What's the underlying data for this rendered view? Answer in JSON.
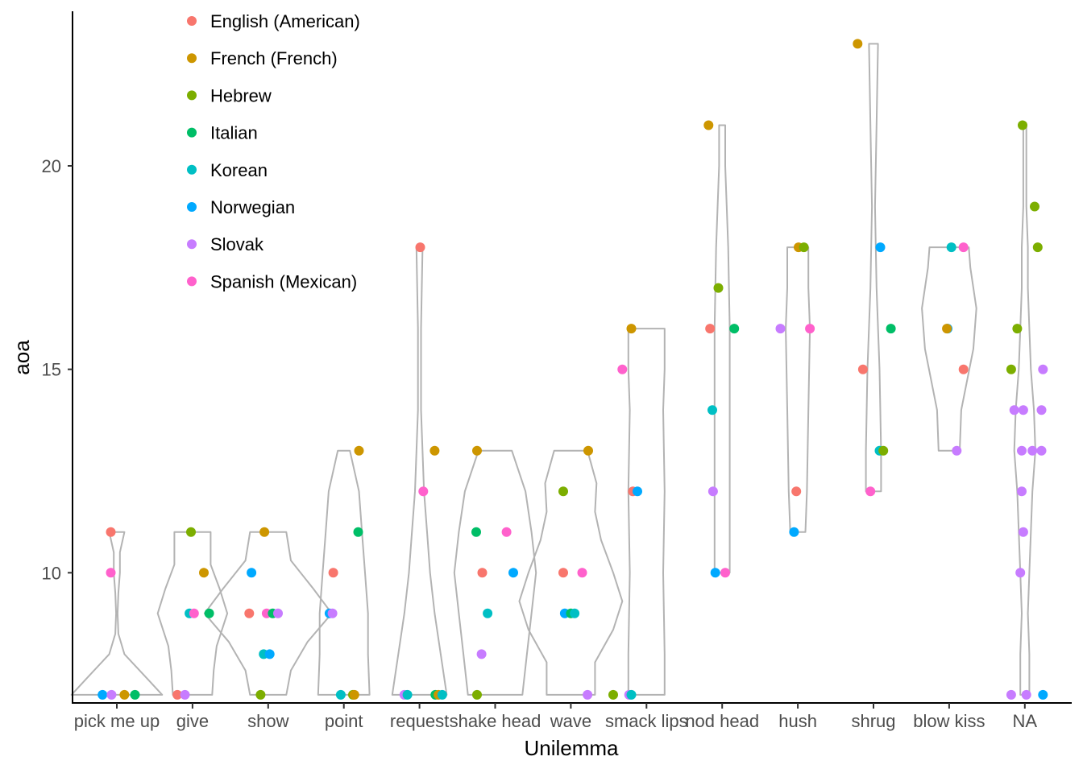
{
  "chart_data": {
    "type": "violin-jitter",
    "xlabel": "Unilemma",
    "ylabel": "aoa",
    "ylim": [
      6.8,
      23.8
    ],
    "yticks": [
      10,
      15,
      20
    ],
    "grid": false,
    "legend_position": "top-left",
    "categories": [
      "pick me up",
      "give",
      "show",
      "point",
      "request",
      "shake head",
      "wave",
      "smack lips",
      "nod head",
      "hush",
      "shrug",
      "blow kiss",
      "NA"
    ],
    "series": [
      {
        "name": "English (American)",
        "color": "#F8766D"
      },
      {
        "name": "French (French)",
        "color": "#CD9600"
      },
      {
        "name": "Hebrew",
        "color": "#7CAE00"
      },
      {
        "name": "Italian",
        "color": "#00BE67"
      },
      {
        "name": "Korean",
        "color": "#00BFC4"
      },
      {
        "name": "Norwegian",
        "color": "#00A9FF"
      },
      {
        "name": "Slovak",
        "color": "#C77CFF"
      },
      {
        "name": "Spanish (Mexican)",
        "color": "#FF61CC"
      }
    ],
    "points": [
      {
        "c": 0,
        "s": 0,
        "y": 11,
        "j": -0.08
      },
      {
        "c": 0,
        "s": 7,
        "y": 10,
        "j": -0.08
      },
      {
        "c": 0,
        "s": 5,
        "y": 7,
        "j": -0.19
      },
      {
        "c": 0,
        "s": 6,
        "y": 7,
        "j": -0.07
      },
      {
        "c": 0,
        "s": 1,
        "y": 7,
        "j": 0.1
      },
      {
        "c": 0,
        "s": 3,
        "y": 7,
        "j": 0.24
      },
      {
        "c": 1,
        "s": 2,
        "y": 11,
        "j": -0.02
      },
      {
        "c": 1,
        "s": 1,
        "y": 10,
        "j": 0.15
      },
      {
        "c": 1,
        "s": 4,
        "y": 9,
        "j": -0.04
      },
      {
        "c": 1,
        "s": 7,
        "y": 9,
        "j": 0.02
      },
      {
        "c": 1,
        "s": 3,
        "y": 9,
        "j": 0.22
      },
      {
        "c": 1,
        "s": 0,
        "y": 7,
        "j": -0.2
      },
      {
        "c": 1,
        "s": 6,
        "y": 7,
        "j": -0.1
      },
      {
        "c": 2,
        "s": 1,
        "y": 11,
        "j": -0.05
      },
      {
        "c": 2,
        "s": 5,
        "y": 10,
        "j": -0.22
      },
      {
        "c": 2,
        "s": 0,
        "y": 9,
        "j": -0.25
      },
      {
        "c": 2,
        "s": 7,
        "y": 9,
        "j": -0.02
      },
      {
        "c": 2,
        "s": 3,
        "y": 9,
        "j": 0.06
      },
      {
        "c": 2,
        "s": 6,
        "y": 9,
        "j": 0.13
      },
      {
        "c": 2,
        "s": 4,
        "y": 8,
        "j": -0.06
      },
      {
        "c": 2,
        "s": 5,
        "y": 8,
        "j": 0.02
      },
      {
        "c": 2,
        "s": 2,
        "y": 7,
        "j": -0.1
      },
      {
        "c": 3,
        "s": 1,
        "y": 13,
        "j": 0.2
      },
      {
        "c": 3,
        "s": 3,
        "y": 11,
        "j": 0.19
      },
      {
        "c": 3,
        "s": 0,
        "y": 10,
        "j": -0.14
      },
      {
        "c": 3,
        "s": 5,
        "y": 9,
        "j": -0.19
      },
      {
        "c": 3,
        "s": 6,
        "y": 9,
        "j": -0.15
      },
      {
        "c": 3,
        "s": 4,
        "y": 7,
        "j": -0.04
      },
      {
        "c": 3,
        "s": 2,
        "y": 7,
        "j": 0.12
      },
      {
        "c": 3,
        "s": 1,
        "y": 7,
        "j": 0.14
      },
      {
        "c": 4,
        "s": 0,
        "y": 18,
        "j": 0.01
      },
      {
        "c": 4,
        "s": 1,
        "y": 13,
        "j": 0.2
      },
      {
        "c": 4,
        "s": 7,
        "y": 12,
        "j": 0.05
      },
      {
        "c": 4,
        "s": 6,
        "y": 7,
        "j": -0.2
      },
      {
        "c": 4,
        "s": 4,
        "y": 7,
        "j": -0.16
      },
      {
        "c": 4,
        "s": 3,
        "y": 7,
        "j": 0.21
      },
      {
        "c": 4,
        "s": 1,
        "y": 7,
        "j": 0.25
      },
      {
        "c": 4,
        "s": 4,
        "y": 7,
        "j": 0.3
      },
      {
        "c": 5,
        "s": 1,
        "y": 13,
        "j": -0.24
      },
      {
        "c": 5,
        "s": 3,
        "y": 11,
        "j": -0.25
      },
      {
        "c": 5,
        "s": 7,
        "y": 11,
        "j": 0.15
      },
      {
        "c": 5,
        "s": 0,
        "y": 10,
        "j": -0.17
      },
      {
        "c": 5,
        "s": 5,
        "y": 10,
        "j": 0.24
      },
      {
        "c": 5,
        "s": 4,
        "y": 9,
        "j": -0.1
      },
      {
        "c": 5,
        "s": 6,
        "y": 8,
        "j": -0.18
      },
      {
        "c": 5,
        "s": 2,
        "y": 7,
        "j": -0.24
      },
      {
        "c": 6,
        "s": 2,
        "y": 12,
        "j": -0.1
      },
      {
        "c": 6,
        "s": 1,
        "y": 13,
        "j": 0.23
      },
      {
        "c": 6,
        "s": 0,
        "y": 10,
        "j": -0.1
      },
      {
        "c": 6,
        "s": 7,
        "y": 10,
        "j": 0.15
      },
      {
        "c": 6,
        "s": 5,
        "y": 9,
        "j": -0.08
      },
      {
        "c": 6,
        "s": 3,
        "y": 9,
        "j": 0.0
      },
      {
        "c": 6,
        "s": 4,
        "y": 9,
        "j": 0.05
      },
      {
        "c": 6,
        "s": 6,
        "y": 7,
        "j": 0.22
      },
      {
        "c": 7,
        "s": 7,
        "y": 15,
        "j": -0.32
      },
      {
        "c": 7,
        "s": 1,
        "y": 16,
        "j": -0.2
      },
      {
        "c": 7,
        "s": 0,
        "y": 12,
        "j": -0.18
      },
      {
        "c": 7,
        "s": 5,
        "y": 12,
        "j": -0.12
      },
      {
        "c": 7,
        "s": 2,
        "y": 7,
        "j": -0.44
      },
      {
        "c": 7,
        "s": 6,
        "y": 7,
        "j": -0.23
      },
      {
        "c": 7,
        "s": 4,
        "y": 7,
        "j": -0.2
      },
      {
        "c": 8,
        "s": 1,
        "y": 21,
        "j": -0.18
      },
      {
        "c": 8,
        "s": 2,
        "y": 17,
        "j": -0.05
      },
      {
        "c": 8,
        "s": 0,
        "y": 16,
        "j": -0.16
      },
      {
        "c": 8,
        "s": 3,
        "y": 16,
        "j": 0.16
      },
      {
        "c": 8,
        "s": 4,
        "y": 14,
        "j": -0.13
      },
      {
        "c": 8,
        "s": 6,
        "y": 12,
        "j": -0.12
      },
      {
        "c": 8,
        "s": 5,
        "y": 10,
        "j": -0.09
      },
      {
        "c": 8,
        "s": 7,
        "y": 10,
        "j": 0.04
      },
      {
        "c": 9,
        "s": 1,
        "y": 18,
        "j": 0.01
      },
      {
        "c": 9,
        "s": 2,
        "y": 18,
        "j": 0.08
      },
      {
        "c": 9,
        "s": 6,
        "y": 16,
        "j": -0.23
      },
      {
        "c": 9,
        "s": 7,
        "y": 16,
        "j": 0.16
      },
      {
        "c": 9,
        "s": 0,
        "y": 12,
        "j": -0.02
      },
      {
        "c": 9,
        "s": 5,
        "y": 11,
        "j": -0.05
      },
      {
        "c": 10,
        "s": 1,
        "y": 23,
        "j": -0.21
      },
      {
        "c": 10,
        "s": 5,
        "y": 18,
        "j": 0.09
      },
      {
        "c": 10,
        "s": 3,
        "y": 16,
        "j": 0.23
      },
      {
        "c": 10,
        "s": 0,
        "y": 15,
        "j": -0.14
      },
      {
        "c": 10,
        "s": 4,
        "y": 13,
        "j": 0.08
      },
      {
        "c": 10,
        "s": 2,
        "y": 13,
        "j": 0.13
      },
      {
        "c": 10,
        "s": 7,
        "y": 12,
        "j": -0.04
      },
      {
        "c": 11,
        "s": 4,
        "y": 18,
        "j": 0.03
      },
      {
        "c": 11,
        "s": 7,
        "y": 18,
        "j": 0.19
      },
      {
        "c": 11,
        "s": 5,
        "y": 16,
        "j": -0.02
      },
      {
        "c": 11,
        "s": 1,
        "y": 16,
        "j": -0.03
      },
      {
        "c": 11,
        "s": 0,
        "y": 15,
        "j": 0.19
      },
      {
        "c": 11,
        "s": 6,
        "y": 13,
        "j": 0.1
      },
      {
        "c": 12,
        "s": 2,
        "y": 21,
        "j": -0.03
      },
      {
        "c": 12,
        "s": 2,
        "y": 19,
        "j": 0.13
      },
      {
        "c": 12,
        "s": 2,
        "y": 18,
        "j": 0.17
      },
      {
        "c": 12,
        "s": 2,
        "y": 16,
        "j": -0.1
      },
      {
        "c": 12,
        "s": 2,
        "y": 15,
        "j": -0.18
      },
      {
        "c": 12,
        "s": 6,
        "y": 15,
        "j": 0.24
      },
      {
        "c": 12,
        "s": 6,
        "y": 14,
        "j": -0.14
      },
      {
        "c": 12,
        "s": 6,
        "y": 14,
        "j": -0.02
      },
      {
        "c": 12,
        "s": 6,
        "y": 14,
        "j": 0.22
      },
      {
        "c": 12,
        "s": 6,
        "y": 13,
        "j": -0.04
      },
      {
        "c": 12,
        "s": 6,
        "y": 13,
        "j": 0.1
      },
      {
        "c": 12,
        "s": 6,
        "y": 13,
        "j": 0.22
      },
      {
        "c": 12,
        "s": 6,
        "y": 12,
        "j": -0.04
      },
      {
        "c": 12,
        "s": 6,
        "y": 11,
        "j": -0.02
      },
      {
        "c": 12,
        "s": 6,
        "y": 10,
        "j": -0.06
      },
      {
        "c": 12,
        "s": 6,
        "y": 7,
        "j": -0.18
      },
      {
        "c": 12,
        "s": 6,
        "y": 7,
        "j": 0.02
      },
      {
        "c": 12,
        "s": 5,
        "y": 7,
        "j": 0.24
      }
    ],
    "violins": [
      {
        "c": 0,
        "profile": [
          [
            7,
            0.3
          ],
          [
            7.4,
            0.2
          ],
          [
            8,
            0.05
          ],
          [
            8.5,
            0.01
          ],
          [
            9,
            0.005
          ],
          [
            9.5,
            0.01
          ],
          [
            10,
            0.02
          ],
          [
            10.5,
            0.02
          ],
          [
            11,
            0.05
          ]
        ]
      },
      {
        "c": 1,
        "profile": [
          [
            7,
            0.13
          ],
          [
            7.6,
            0.14
          ],
          [
            8.2,
            0.16
          ],
          [
            9,
            0.23
          ],
          [
            9.6,
            0.18
          ],
          [
            10.2,
            0.12
          ],
          [
            11,
            0.12
          ]
        ]
      },
      {
        "c": 2,
        "profile": [
          [
            7,
            0.12
          ],
          [
            7.6,
            0.15
          ],
          [
            8.3,
            0.26
          ],
          [
            9,
            0.42
          ],
          [
            9.6,
            0.3
          ],
          [
            10.3,
            0.15
          ],
          [
            11,
            0.12
          ]
        ]
      },
      {
        "c": 3,
        "profile": [
          [
            7,
            0.17
          ],
          [
            8,
            0.16
          ],
          [
            9,
            0.16
          ],
          [
            10,
            0.14
          ],
          [
            11,
            0.12
          ],
          [
            12,
            0.1
          ],
          [
            13,
            0.04
          ]
        ]
      },
      {
        "c": 4,
        "profile": [
          [
            7,
            0.18
          ],
          [
            8,
            0.14
          ],
          [
            9,
            0.1
          ],
          [
            10,
            0.07
          ],
          [
            11,
            0.05
          ],
          [
            12,
            0.03
          ],
          [
            14,
            0.01
          ],
          [
            16,
            0.01
          ],
          [
            18,
            0.02
          ]
        ]
      },
      {
        "c": 5,
        "profile": [
          [
            7,
            0.18
          ],
          [
            8,
            0.21
          ],
          [
            9,
            0.24
          ],
          [
            10,
            0.27
          ],
          [
            11,
            0.24
          ],
          [
            12,
            0.2
          ],
          [
            13,
            0.11
          ]
        ]
      },
      {
        "c": 6,
        "profile": [
          [
            7,
            0.16
          ],
          [
            7.8,
            0.16
          ],
          [
            8.6,
            0.28
          ],
          [
            9.3,
            0.34
          ],
          [
            10,
            0.28
          ],
          [
            10.8,
            0.2
          ],
          [
            11.5,
            0.16
          ],
          [
            12.2,
            0.17
          ],
          [
            13,
            0.11
          ]
        ]
      },
      {
        "c": 7,
        "profile": [
          [
            7,
            0.12
          ],
          [
            8,
            0.12
          ],
          [
            10,
            0.11
          ],
          [
            12,
            0.12
          ],
          [
            14,
            0.11
          ],
          [
            15,
            0.12
          ],
          [
            16,
            0.12
          ]
        ]
      },
      {
        "c": 8,
        "profile": [
          [
            10,
            0.05
          ],
          [
            12,
            0.05
          ],
          [
            14,
            0.05
          ],
          [
            16,
            0.05
          ],
          [
            18,
            0.04
          ],
          [
            20,
            0.02
          ],
          [
            21,
            0.02
          ]
        ]
      },
      {
        "c": 9,
        "profile": [
          [
            11,
            0.05
          ],
          [
            12,
            0.06
          ],
          [
            14,
            0.07
          ],
          [
            16,
            0.08
          ],
          [
            17,
            0.07
          ],
          [
            18,
            0.07
          ]
        ]
      },
      {
        "c": 10,
        "profile": [
          [
            12,
            0.05
          ],
          [
            13,
            0.05
          ],
          [
            15,
            0.04
          ],
          [
            17,
            0.02
          ],
          [
            19,
            0.01
          ],
          [
            21,
            0.02
          ],
          [
            23,
            0.03
          ]
        ]
      },
      {
        "c": 11,
        "profile": [
          [
            13,
            0.07
          ],
          [
            14,
            0.08
          ],
          [
            15.5,
            0.16
          ],
          [
            16.5,
            0.18
          ],
          [
            17.5,
            0.14
          ],
          [
            18,
            0.13
          ]
        ]
      },
      {
        "c": 12,
        "profile": [
          [
            7,
            0.03
          ],
          [
            8,
            0.03
          ],
          [
            9,
            0.02
          ],
          [
            10,
            0.03
          ],
          [
            11,
            0.04
          ],
          [
            12,
            0.05
          ],
          [
            13,
            0.07
          ],
          [
            14,
            0.06
          ],
          [
            15,
            0.04
          ],
          [
            16,
            0.03
          ],
          [
            17,
            0.02
          ],
          [
            18,
            0.02
          ],
          [
            19,
            0.01
          ],
          [
            20,
            0.01
          ],
          [
            21,
            0.01
          ]
        ]
      }
    ]
  }
}
